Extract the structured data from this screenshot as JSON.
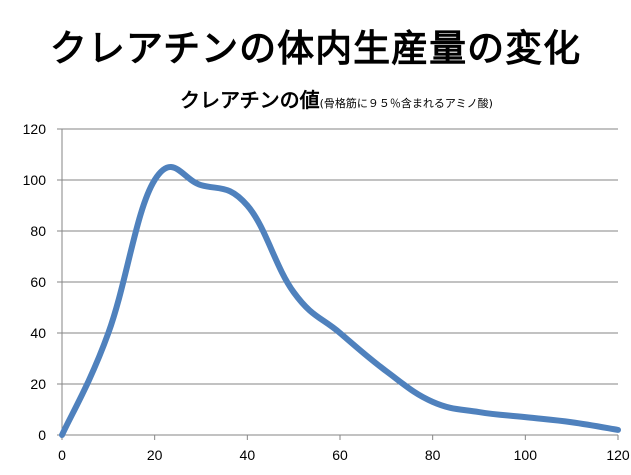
{
  "page": {
    "title": "クレアチンの体内生産量の変化"
  },
  "chart_data": {
    "type": "line",
    "title": "クレアチンの値",
    "subtitle": "(骨格筋に９５％含まれるアミノ酸)",
    "xlabel": "",
    "ylabel": "",
    "xlim": [
      0,
      120
    ],
    "ylim": [
      0,
      120
    ],
    "x_ticks": [
      0,
      20,
      40,
      60,
      80,
      100,
      120
    ],
    "y_ticks": [
      0,
      20,
      40,
      60,
      80,
      100,
      120
    ],
    "grid": "horizontal",
    "legend": "none",
    "series": [
      {
        "name": "クレアチン",
        "color": "#4F81BD",
        "x": [
          0,
          10,
          20,
          30,
          40,
          50,
          60,
          70,
          80,
          90,
          100,
          110,
          120
        ],
        "y": [
          0,
          40,
          100,
          98,
          90,
          56,
          40,
          25,
          13,
          9,
          7,
          5,
          2
        ]
      }
    ]
  }
}
